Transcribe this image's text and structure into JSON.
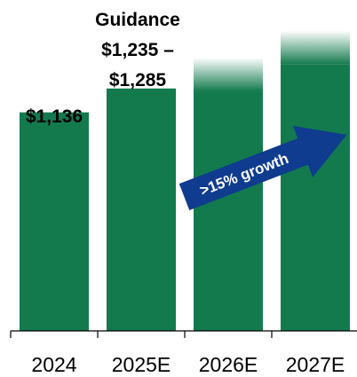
{
  "chart_data": {
    "type": "bar",
    "title": "",
    "xlabel": "",
    "ylabel": "",
    "categories": [
      "2024",
      "2025E",
      "2026E",
      "2027E"
    ],
    "values": [
      1136,
      1260,
      1420,
      1560
    ],
    "projected": [
      false,
      false,
      true,
      true
    ],
    "ylim": [
      0,
      1720
    ],
    "data_labels": {
      "bar_2024": "$1,136",
      "guidance_title": "Guidance",
      "guidance_range_low": "$1,235 –",
      "guidance_range_high": "$1,285"
    },
    "annotation": {
      "text": ">15% growth"
    },
    "grid": false,
    "legend": "none"
  },
  "colors": {
    "bar": "#137A4E",
    "arrow": "#0F3C8E",
    "arrow_text": "#FFFFFF",
    "axis": "#000000"
  }
}
